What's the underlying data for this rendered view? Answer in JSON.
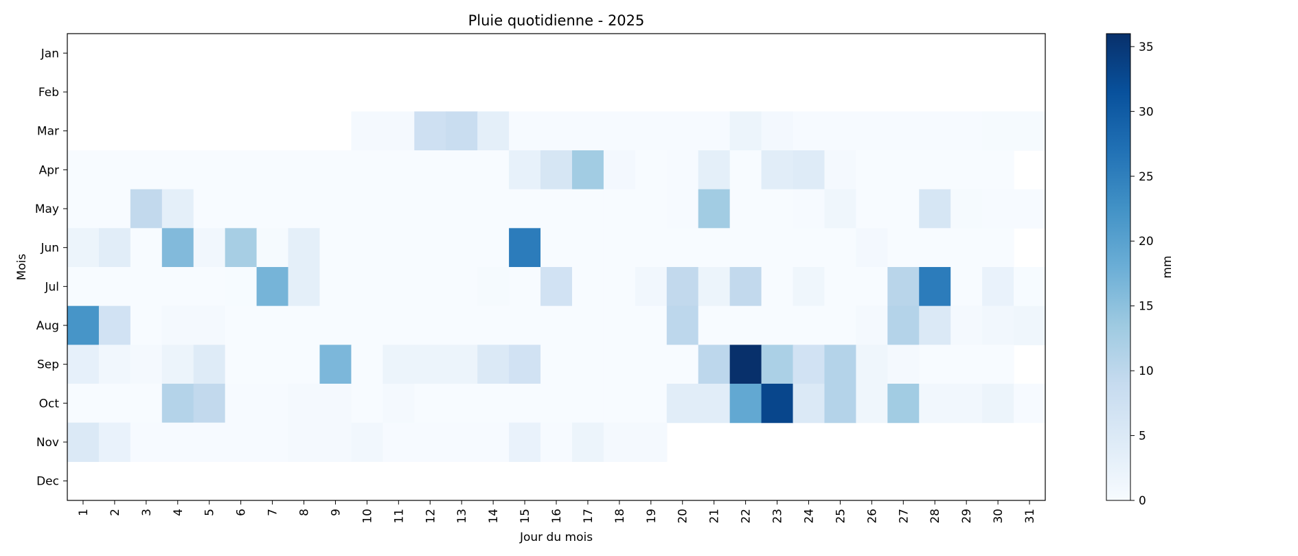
{
  "chart_data": {
    "type": "heatmap",
    "title": "Pluie quotidienne - 2025",
    "xlabel": "Jour du mois",
    "ylabel": "Mois",
    "colorbar_label": "mm",
    "colormap": [
      "#f7fbff",
      "#deebf7",
      "#c6dbef",
      "#9ecae1",
      "#6baed6",
      "#4292c6",
      "#2171b5",
      "#08519c",
      "#08306b"
    ],
    "vmin": 0,
    "vmax": 36,
    "colorbar_ticks": [
      "0",
      "5",
      "10",
      "15",
      "20",
      "25",
      "30",
      "35"
    ],
    "x_categories": [
      "1",
      "2",
      "3",
      "4",
      "5",
      "6",
      "7",
      "8",
      "9",
      "10",
      "11",
      "12",
      "13",
      "14",
      "15",
      "16",
      "17",
      "18",
      "19",
      "20",
      "21",
      "22",
      "23",
      "24",
      "25",
      "26",
      "27",
      "28",
      "29",
      "30",
      "31"
    ],
    "y_categories": [
      "Jan",
      "Feb",
      "Mar",
      "Apr",
      "May",
      "Jun",
      "Jul",
      "Aug",
      "Sep",
      "Oct",
      "Nov",
      "Dec"
    ],
    "values": [
      [
        null,
        null,
        null,
        null,
        null,
        null,
        null,
        null,
        null,
        null,
        null,
        null,
        null,
        null,
        null,
        null,
        null,
        null,
        null,
        null,
        null,
        null,
        null,
        null,
        null,
        null,
        null,
        null,
        null,
        null,
        null
      ],
      [
        null,
        null,
        null,
        null,
        null,
        null,
        null,
        null,
        null,
        null,
        null,
        null,
        null,
        null,
        null,
        null,
        null,
        null,
        null,
        null,
        null,
        null,
        null,
        null,
        null,
        null,
        null,
        null,
        null,
        null,
        null
      ],
      [
        null,
        null,
        null,
        null,
        null,
        null,
        null,
        null,
        null,
        0.5,
        0.6,
        7.5,
        8.5,
        3.5,
        0.2,
        0.2,
        0.2,
        0.2,
        0.2,
        0.2,
        0.2,
        2,
        0.8,
        0.2,
        0.2,
        0.2,
        0.2,
        0.2,
        0.2,
        0.4,
        0.3
      ],
      [
        0,
        0,
        0,
        0,
        0,
        0,
        0,
        0,
        0,
        0,
        0,
        0,
        0,
        0,
        2.8,
        6,
        13,
        0.8,
        0,
        0.2,
        3.5,
        0,
        4,
        4.5,
        0.5,
        0,
        0,
        0,
        0,
        0,
        null
      ],
      [
        0,
        0,
        9.5,
        3.5,
        0,
        0,
        0,
        0,
        0,
        0,
        0,
        0,
        0,
        0,
        0,
        0,
        0,
        0,
        0,
        0.2,
        13,
        0,
        0,
        0.2,
        1.5,
        0,
        0,
        6,
        0.4,
        0.2,
        0.2
      ],
      [
        2,
        4,
        0,
        16,
        1,
        12.5,
        0.3,
        3.5,
        0,
        0,
        0,
        0,
        0,
        0,
        25.5,
        0,
        0,
        0,
        0,
        0,
        0,
        0,
        0,
        0,
        0,
        0.8,
        0,
        0,
        0,
        0,
        null
      ],
      [
        0,
        0,
        0,
        0,
        0,
        0.1,
        17,
        3.5,
        0,
        0,
        0,
        0,
        0,
        0.3,
        0,
        7,
        0,
        0,
        1,
        9.5,
        2,
        9.5,
        0,
        1.5,
        0,
        0,
        10.5,
        25.5,
        0,
        2.5,
        0.1
      ],
      [
        22,
        7,
        0,
        0.5,
        0.5,
        0,
        0,
        0,
        0,
        0,
        0,
        0,
        0,
        0,
        0,
        0,
        0,
        0,
        0,
        10,
        0,
        0,
        0,
        0,
        0,
        0.5,
        11,
        5,
        0.5,
        1,
        1.5
      ],
      [
        3,
        1,
        0.5,
        2,
        4.5,
        0,
        0,
        0,
        16.5,
        0,
        2,
        2,
        2,
        5,
        7,
        0,
        0,
        0,
        0,
        0,
        10,
        36,
        12,
        7,
        11,
        1.5,
        0.5,
        0,
        0,
        0,
        null
      ],
      [
        0,
        0,
        0,
        11,
        9.5,
        0.2,
        0.2,
        0.5,
        0.5,
        0,
        0.5,
        0,
        0,
        0,
        0,
        0,
        0,
        0,
        0,
        4,
        4,
        19,
        33,
        5,
        11,
        1.5,
        13,
        1,
        1,
        2,
        0.2
      ],
      [
        5,
        2.5,
        0.2,
        0.2,
        0.2,
        0.2,
        0.2,
        0.5,
        0.5,
        1,
        0.2,
        0.2,
        0.2,
        0.2,
        2.5,
        0.2,
        2,
        0.5,
        0.5,
        null,
        null,
        null,
        null,
        null,
        null,
        null,
        null,
        null,
        null,
        null,
        null
      ],
      [
        null,
        null,
        null,
        null,
        null,
        null,
        null,
        null,
        null,
        null,
        null,
        null,
        null,
        null,
        null,
        null,
        null,
        null,
        null,
        null,
        null,
        null,
        null,
        null,
        null,
        null,
        null,
        null,
        null,
        null,
        null
      ]
    ]
  }
}
